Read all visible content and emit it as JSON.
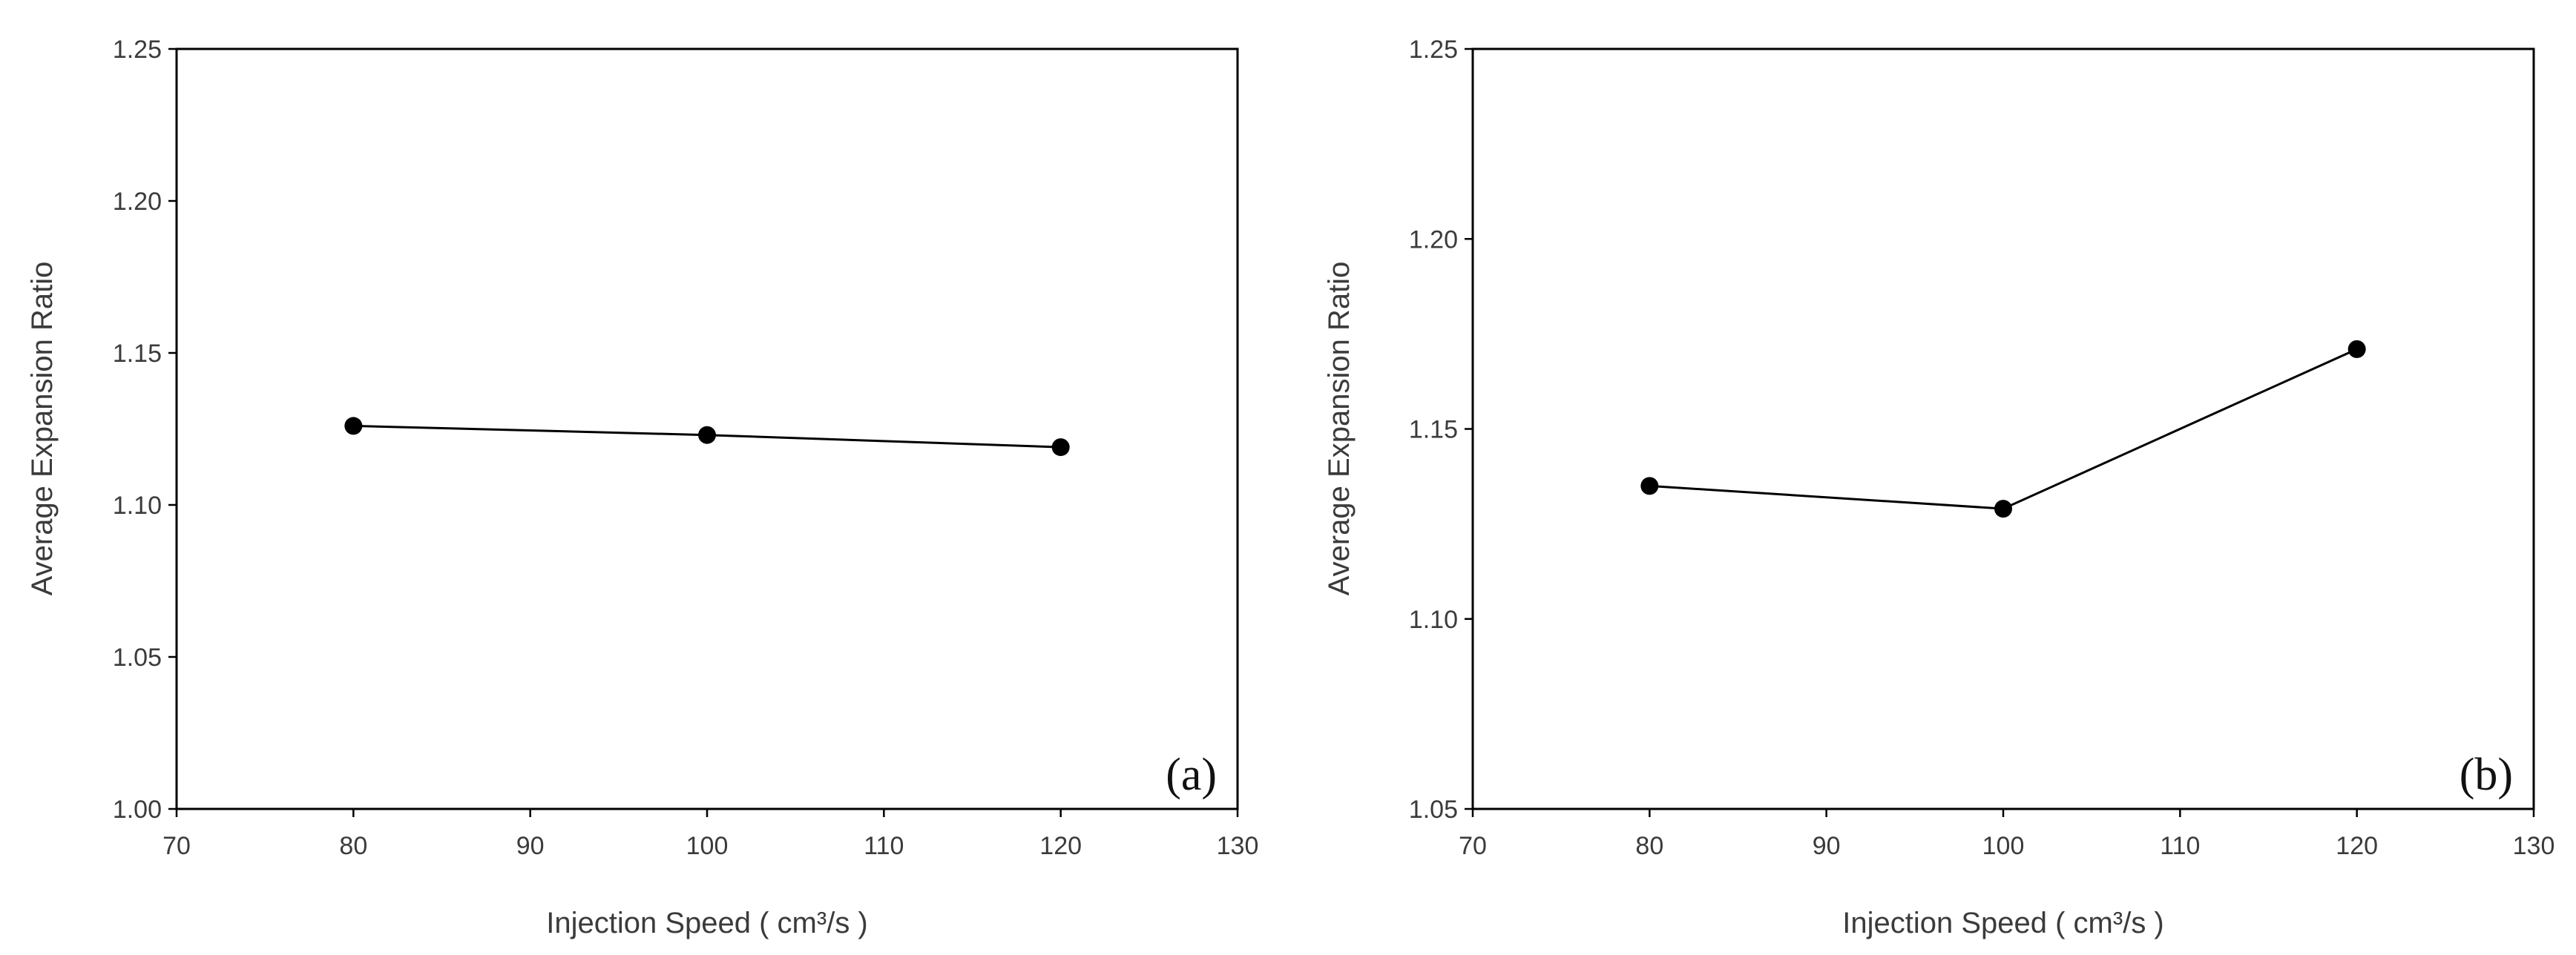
{
  "chart_data": [
    {
      "type": "line",
      "panel_label": "(a)",
      "xlabel": "Injection Speed ( cm³/s )",
      "ylabel": "Average Expansion Ratio",
      "xlim": [
        70,
        130
      ],
      "ylim": [
        1.0,
        1.25
      ],
      "x_ticks": [
        "70",
        "80",
        "90",
        "100",
        "110",
        "120",
        "130"
      ],
      "y_ticks": [
        "1.00",
        "1.05",
        "1.10",
        "1.15",
        "1.20",
        "1.25"
      ],
      "series": [
        {
          "x": [
            80,
            100,
            120
          ],
          "y": [
            1.126,
            1.123,
            1.119
          ]
        }
      ],
      "line_color": "#000000",
      "marker_color": "#000000"
    },
    {
      "type": "line",
      "panel_label": "(b)",
      "xlabel": "Injection Speed ( cm³/s )",
      "ylabel": "Average Expansion Ratio",
      "xlim": [
        70,
        130
      ],
      "ylim": [
        1.05,
        1.25
      ],
      "x_ticks": [
        "70",
        "80",
        "90",
        "100",
        "110",
        "120",
        "130"
      ],
      "y_ticks": [
        "1.05",
        "1.10",
        "1.15",
        "1.20",
        "1.25"
      ],
      "series": [
        {
          "x": [
            80,
            100,
            120
          ],
          "y": [
            1.135,
            1.129,
            1.171
          ]
        }
      ],
      "line_color": "#000000",
      "marker_color": "#000000"
    }
  ]
}
